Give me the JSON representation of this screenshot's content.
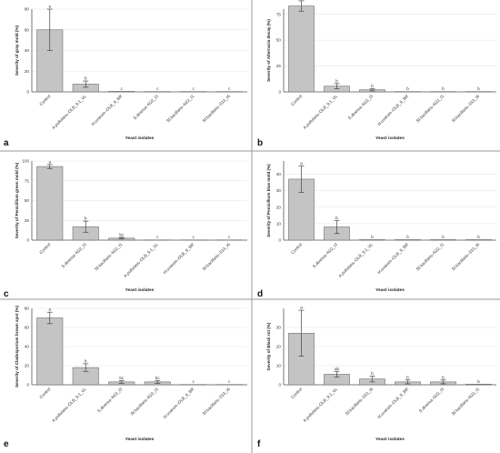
{
  "chart_data": [
    {
      "type": "bar",
      "panel_label": "a",
      "ylabel": "Severity of gray mold (%)",
      "xlabel": "Yeast isolates",
      "ylim": [
        0,
        80
      ],
      "yticks": [
        0,
        20,
        40,
        60,
        80
      ],
      "grid": true,
      "categories": [
        "Control",
        "A.pullulans–OLB_9.1_VL",
        "H.uvarum–OLB_9_BR",
        "S.diversa–N22_I3",
        "Sf.bacillaris–N22_I1",
        "Sf.bacillaris–S13_I6"
      ],
      "values": [
        60,
        7.5,
        0.5,
        0.3,
        0.3,
        0.3
      ],
      "errors": [
        20,
        3,
        0,
        0,
        0,
        0
      ],
      "letters": [
        "a",
        "b",
        "c",
        "c",
        "c",
        "c"
      ]
    },
    {
      "type": "bar",
      "panel_label": "b",
      "ylabel": "Severity of Alternaria decay (%)",
      "xlabel": "Yeast isolates",
      "ylim": [
        0,
        80
      ],
      "yticks": [
        0,
        25,
        50,
        75
      ],
      "grid": true,
      "categories": [
        "Control",
        "A.pullulans–OLB_9.1_VL",
        "S.diversa–N22_I3",
        "H.uvarum–OLB_9_BR",
        "Sf.bacillaris–N22_I1",
        "Sf.bacillaris–S13_I6"
      ],
      "values": [
        83,
        5.5,
        2,
        0.3,
        0.3,
        0.3
      ],
      "errors": [
        5,
        2.5,
        1,
        0,
        0,
        0
      ],
      "letters": [
        "a",
        "b",
        "b",
        "b",
        "b",
        "b"
      ]
    },
    {
      "type": "bar",
      "panel_label": "c",
      "ylabel": "Severity of Penicillium green mold (%)",
      "xlabel": "Yeast isolates",
      "ylim": [
        0,
        100
      ],
      "yticks": [
        0,
        25,
        50,
        75,
        100
      ],
      "grid": true,
      "categories": [
        "Control",
        "S.diversa–N22_I3",
        "Sf.bacillaris–N22_I1",
        "A.pullulans–OLB_9.1_VL",
        "H.uvarum–OLB_9_BR",
        "Sf.bacillaris–S13_I6"
      ],
      "values": [
        93,
        17,
        2.5,
        0.3,
        0.3,
        0.3
      ],
      "errors": [
        2.5,
        7,
        1,
        0,
        0,
        0
      ],
      "letters": [
        "a",
        "b",
        "bc",
        "c",
        "c",
        "c"
      ]
    },
    {
      "type": "bar",
      "panel_label": "d",
      "ylabel": "Severity of Penicillium blue mold (%)",
      "xlabel": "Yeast isolates",
      "ylim": [
        0,
        48
      ],
      "yticks": [
        0,
        10,
        20,
        30,
        40
      ],
      "grid": true,
      "categories": [
        "Control",
        "S.diversa–N22_I3",
        "A.pullulans–OLB_9.1_VL",
        "H.uvarum–OLB_9_BR",
        "Sf.bacillaris–N22_I1",
        "Sf.bacillaris–S13_I6"
      ],
      "values": [
        37,
        8,
        0.3,
        0.3,
        0.3,
        0.3
      ],
      "errors": [
        8,
        4,
        0,
        0,
        0,
        0
      ],
      "letters": [
        "a",
        "b",
        "b",
        "b",
        "b",
        "b"
      ]
    },
    {
      "type": "bar",
      "panel_label": "e",
      "ylabel": "Severity of Cladosporium brown spot (%)",
      "xlabel": "Yeast isolates",
      "ylim": [
        0,
        80
      ],
      "yticks": [
        0,
        20,
        40,
        60,
        80
      ],
      "grid": true,
      "categories": [
        "Control",
        "A.pullulans–OLB_9.1_VL",
        "S.diversa–N22_I3",
        "Sf.bacillaris–N22_I1",
        "H.uvarum–OLB_9_BR",
        "Sf.bacillaris–S13_I6"
      ],
      "values": [
        70,
        18,
        3,
        3,
        0.3,
        0.3
      ],
      "errors": [
        6,
        4,
        1.5,
        1.5,
        0,
        0
      ],
      "letters": [
        "a",
        "b",
        "bc",
        "bc",
        "c",
        "c"
      ]
    },
    {
      "type": "bar",
      "panel_label": "f",
      "ylabel": "Severity of Black rot (%)",
      "xlabel": "Yeast isolates",
      "ylim": [
        0,
        40
      ],
      "yticks": [
        0,
        10,
        20,
        30
      ],
      "grid": true,
      "categories": [
        "Control",
        "A.pullulans–OLB_9.1_VL",
        "Sf.bacillaris–S13_I6",
        "H.uvarum–OLB_9_BR",
        "S.diversa–N22_I3",
        "Sf.bacillaris–N22_I1"
      ],
      "values": [
        27,
        5.5,
        3,
        1.5,
        1.5,
        0.3
      ],
      "errors": [
        12,
        1.5,
        1.5,
        1,
        1,
        0
      ],
      "letters": [
        "a",
        "ab",
        "b",
        "b",
        "b",
        "b"
      ]
    }
  ]
}
